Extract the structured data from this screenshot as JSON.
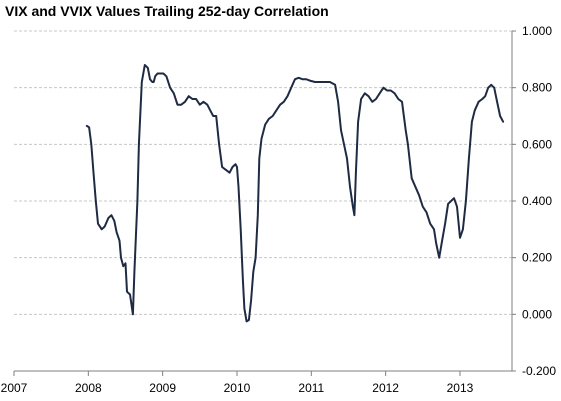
{
  "chart_data": {
    "type": "line",
    "title": "VIX and VVIX Values Trailing 252-day Correlation",
    "xlabel": "",
    "ylabel": "",
    "x_ticks": [
      "2007",
      "2008",
      "2009",
      "2010",
      "2011",
      "2012",
      "2013"
    ],
    "y_ticks": [
      "1.000",
      "0.800",
      "0.600",
      "0.400",
      "0.200",
      "0.000",
      "-0.200"
    ],
    "xlim": [
      2007.0,
      2013.7
    ],
    "ylim": [
      -0.2,
      1.0
    ],
    "y_axis_position": "right",
    "grid": "horizontal-dashed",
    "line_color": "#1f2a44",
    "series": [
      {
        "x": [
          2007.98,
          2008.01,
          2008.04,
          2008.07,
          2008.1,
          2008.13,
          2008.18,
          2008.22,
          2008.27,
          2008.31,
          2008.35,
          2008.38,
          2008.42,
          2008.44,
          2008.47,
          2008.5,
          2008.52,
          2008.56,
          2008.6,
          2008.62,
          2008.66,
          2008.68,
          2008.72,
          2008.76,
          2008.8,
          2008.83,
          2008.86,
          2008.88,
          2008.9,
          2008.93,
          2008.97,
          2009.01,
          2009.05,
          2009.1,
          2009.15,
          2009.2,
          2009.25,
          2009.3,
          2009.35,
          2009.4,
          2009.45,
          2009.5,
          2009.55,
          2009.6,
          2009.64,
          2009.68,
          2009.72,
          2009.76,
          2009.8,
          2009.85,
          2009.9,
          2009.94,
          2009.98,
          2010.0,
          2010.02,
          2010.05,
          2010.08,
          2010.1,
          2010.13,
          2010.16,
          2010.19,
          2010.22,
          2010.25,
          2010.28,
          2010.3,
          2010.33,
          2010.38,
          2010.43,
          2010.48,
          2010.53,
          2010.58,
          2010.63,
          2010.68,
          2010.73,
          2010.78,
          2010.83,
          2010.88,
          2010.93,
          2010.98,
          2011.05,
          2011.15,
          2011.25,
          2011.32,
          2011.36,
          2011.4,
          2011.44,
          2011.48,
          2011.52,
          2011.56,
          2011.58,
          2011.6,
          2011.63,
          2011.67,
          2011.72,
          2011.77,
          2011.82,
          2011.87,
          2011.92,
          2011.97,
          2012.02,
          2012.07,
          2012.12,
          2012.17,
          2012.22,
          2012.27,
          2012.3,
          2012.35,
          2012.4,
          2012.45,
          2012.5,
          2012.55,
          2012.6,
          2012.65,
          2012.68,
          2012.72,
          2012.76,
          2012.8,
          2012.84,
          2012.88,
          2012.92,
          2012.96,
          2013.0,
          2013.04,
          2013.08,
          2013.12,
          2013.16,
          2013.2,
          2013.25,
          2013.3,
          2013.34,
          2013.38,
          2013.42,
          2013.46,
          2013.5,
          2013.54,
          2013.58
        ],
        "y": [
          0.665,
          0.66,
          0.6,
          0.5,
          0.4,
          0.32,
          0.3,
          0.31,
          0.34,
          0.35,
          0.33,
          0.29,
          0.26,
          0.2,
          0.17,
          0.18,
          0.08,
          0.07,
          0.0,
          0.15,
          0.4,
          0.6,
          0.82,
          0.88,
          0.87,
          0.83,
          0.82,
          0.82,
          0.84,
          0.85,
          0.85,
          0.85,
          0.84,
          0.8,
          0.78,
          0.74,
          0.74,
          0.75,
          0.77,
          0.76,
          0.76,
          0.74,
          0.75,
          0.74,
          0.72,
          0.7,
          0.7,
          0.6,
          0.52,
          0.51,
          0.5,
          0.52,
          0.53,
          0.52,
          0.45,
          0.3,
          0.12,
          0.02,
          -0.025,
          -0.02,
          0.05,
          0.15,
          0.2,
          0.35,
          0.55,
          0.62,
          0.67,
          0.69,
          0.7,
          0.72,
          0.74,
          0.75,
          0.77,
          0.8,
          0.83,
          0.835,
          0.83,
          0.83,
          0.825,
          0.82,
          0.82,
          0.82,
          0.81,
          0.75,
          0.65,
          0.6,
          0.55,
          0.45,
          0.38,
          0.35,
          0.5,
          0.68,
          0.76,
          0.78,
          0.77,
          0.75,
          0.76,
          0.78,
          0.8,
          0.79,
          0.79,
          0.78,
          0.76,
          0.75,
          0.65,
          0.6,
          0.48,
          0.45,
          0.42,
          0.38,
          0.36,
          0.32,
          0.3,
          0.25,
          0.2,
          0.26,
          0.32,
          0.39,
          0.4,
          0.41,
          0.38,
          0.27,
          0.3,
          0.4,
          0.55,
          0.68,
          0.72,
          0.75,
          0.76,
          0.77,
          0.8,
          0.81,
          0.8,
          0.75,
          0.7,
          0.68
        ]
      }
    ]
  }
}
